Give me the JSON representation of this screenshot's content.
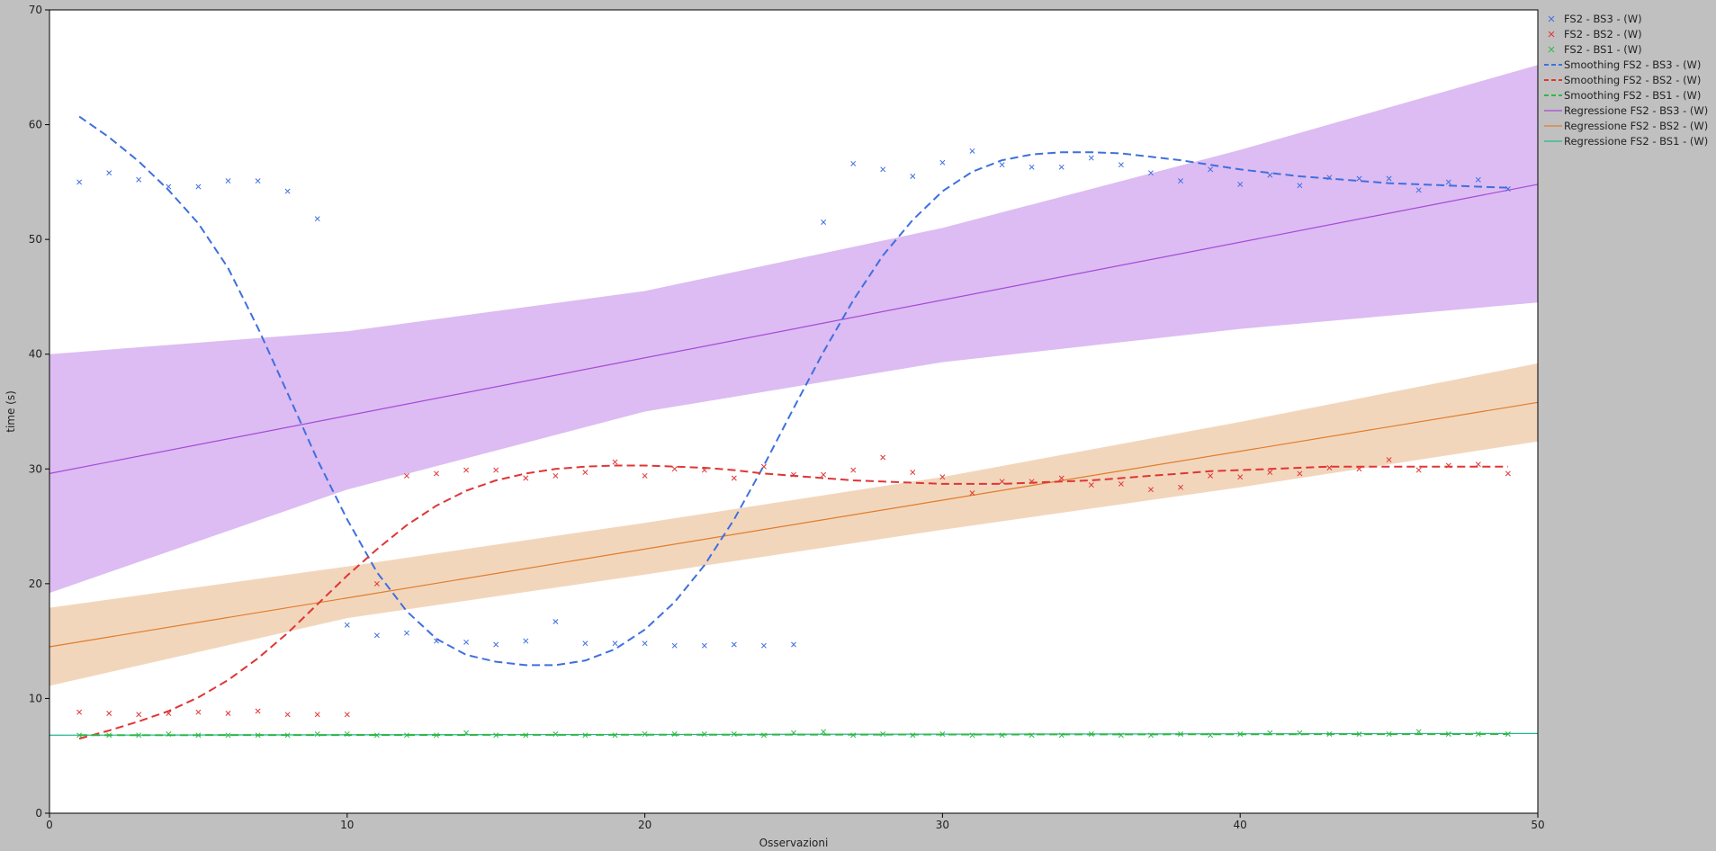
{
  "chart_data": {
    "type": "scatter",
    "xlabel": "Osservazioni",
    "ylabel": "time (s)",
    "xlim": [
      0,
      50
    ],
    "ylim": [
      0,
      70
    ],
    "xticks": [
      0,
      10,
      20,
      30,
      40,
      50
    ],
    "yticks": [
      0,
      10,
      20,
      30,
      40,
      50,
      60,
      70
    ],
    "grid": false,
    "legend_position": "right",
    "colors": {
      "plot_background": "#ffffff",
      "frame_background": "#c0c0c0",
      "bs3": "#3f6fe0",
      "bs2": "#e03535",
      "bs1": "#2eb84a",
      "reg_bs3": "#a64ad8",
      "reg_bs2": "#e07c2a",
      "reg_bs1": "#20b890",
      "band_bs3": "#dcbcf2",
      "band_bs2": "#f2d6bc"
    },
    "legend": [
      {
        "label": "FS2 - BS3 - (W)",
        "kind": "marker",
        "color_key": "bs3"
      },
      {
        "label": "FS2 - BS2 - (W)",
        "kind": "marker",
        "color_key": "bs2"
      },
      {
        "label": "FS2 - BS1 - (W)",
        "kind": "marker",
        "color_key": "bs1"
      },
      {
        "label": "Smoothing FS2 - BS3 - (W)",
        "kind": "dash",
        "color_key": "bs3"
      },
      {
        "label": "Smoothing FS2 - BS2 - (W)",
        "kind": "dash",
        "color_key": "bs2"
      },
      {
        "label": "Smoothing FS2 - BS1 - (W)",
        "kind": "dash",
        "color_key": "bs1"
      },
      {
        "label": "Regressione FS2 - BS3 - (W)",
        "kind": "line",
        "color_key": "reg_bs3"
      },
      {
        "label": "Regressione FS2 - BS2 - (W)",
        "kind": "line",
        "color_key": "reg_bs2"
      },
      {
        "label": "Regressione FS2 - BS1 - (W)",
        "kind": "line",
        "color_key": "reg_bs1"
      }
    ],
    "scatter_series": [
      {
        "name": "FS2 - BS3 - (W)",
        "color_key": "bs3",
        "x": [
          1,
          2,
          3,
          4,
          5,
          6,
          7,
          8,
          9,
          10,
          11,
          12,
          13,
          14,
          15,
          16,
          17,
          18,
          19,
          20,
          21,
          22,
          23,
          24,
          25,
          26,
          27,
          28,
          29,
          30,
          31,
          32,
          33,
          34,
          35,
          36,
          37,
          38,
          39,
          40,
          41,
          42,
          43,
          44,
          45,
          46,
          47,
          48,
          49
        ],
        "y": [
          55.0,
          55.8,
          55.2,
          54.6,
          54.6,
          55.1,
          55.1,
          54.2,
          51.8,
          16.4,
          15.5,
          15.7,
          15.0,
          14.9,
          14.7,
          15.0,
          16.7,
          14.8,
          14.8,
          14.8,
          14.6,
          14.6,
          14.7,
          14.6,
          14.7,
          51.5,
          56.6,
          56.1,
          55.5,
          56.7,
          57.7,
          56.5,
          56.3,
          56.3,
          57.1,
          56.5,
          55.8,
          55.1,
          56.1,
          54.8,
          55.6,
          54.7,
          55.4,
          55.3,
          55.3,
          54.3,
          55.0,
          55.2,
          54.4
        ]
      },
      {
        "name": "FS2 - BS2 - (W)",
        "color_key": "bs2",
        "x": [
          1,
          2,
          3,
          4,
          5,
          6,
          7,
          8,
          9,
          10,
          11,
          12,
          13,
          14,
          15,
          16,
          17,
          18,
          19,
          20,
          21,
          22,
          23,
          24,
          25,
          26,
          27,
          28,
          29,
          30,
          31,
          32,
          33,
          34,
          35,
          36,
          37,
          38,
          39,
          40,
          41,
          42,
          43,
          44,
          45,
          46,
          47,
          48,
          49
        ],
        "y": [
          8.8,
          8.7,
          8.6,
          8.7,
          8.8,
          8.7,
          8.9,
          8.6,
          8.6,
          8.6,
          20.0,
          29.4,
          29.6,
          29.9,
          29.9,
          29.2,
          29.4,
          29.7,
          30.6,
          29.4,
          30.0,
          29.9,
          29.2,
          30.2,
          29.5,
          29.5,
          29.9,
          31.0,
          29.7,
          29.3,
          27.9,
          28.9,
          28.9,
          29.2,
          28.6,
          28.7,
          28.2,
          28.4,
          29.4,
          29.3,
          29.7,
          29.6,
          30.1,
          30.0,
          30.8,
          29.9,
          30.3,
          30.4,
          29.6
        ]
      },
      {
        "name": "FS2 - BS1 - (W)",
        "color_key": "bs1",
        "x": [
          1,
          2,
          3,
          4,
          5,
          6,
          7,
          8,
          9,
          10,
          11,
          12,
          13,
          14,
          15,
          16,
          17,
          18,
          19,
          20,
          21,
          22,
          23,
          24,
          25,
          26,
          27,
          28,
          29,
          30,
          31,
          32,
          33,
          34,
          35,
          36,
          37,
          38,
          39,
          40,
          41,
          42,
          43,
          44,
          45,
          46,
          47,
          48,
          49
        ],
        "y": [
          6.8,
          6.8,
          6.8,
          6.9,
          6.8,
          6.8,
          6.8,
          6.8,
          6.9,
          6.9,
          6.8,
          6.8,
          6.8,
          7.0,
          6.8,
          6.8,
          6.9,
          6.8,
          6.8,
          6.9,
          6.9,
          6.9,
          6.9,
          6.8,
          7.0,
          7.1,
          6.8,
          6.9,
          6.8,
          6.9,
          6.8,
          6.8,
          6.8,
          6.8,
          6.9,
          6.8,
          6.8,
          6.9,
          6.8,
          6.9,
          7.0,
          7.0,
          6.9,
          6.9,
          6.9,
          7.1,
          6.9,
          6.9,
          6.9
        ]
      }
    ],
    "smoothing_series": [
      {
        "name": "Smoothing FS2 - BS3 - (W)",
        "color_key": "bs3",
        "x": [
          1,
          2,
          3,
          4,
          5,
          6,
          7,
          8,
          9,
          10,
          11,
          12,
          13,
          14,
          15,
          16,
          17,
          18,
          19,
          20,
          21,
          22,
          23,
          24,
          25,
          26,
          27,
          28,
          29,
          30,
          31,
          32,
          33,
          34,
          35,
          36,
          37,
          38,
          39,
          40,
          41,
          42,
          43,
          44,
          45,
          46,
          47,
          48,
          49
        ],
        "y": [
          60.7,
          58.9,
          56.8,
          54.3,
          51.4,
          47.5,
          42.3,
          36.6,
          30.8,
          25.6,
          21.0,
          17.6,
          15.2,
          13.8,
          13.2,
          12.9,
          12.9,
          13.3,
          14.3,
          16.0,
          18.4,
          21.6,
          25.6,
          30.3,
          35.3,
          40.2,
          44.7,
          48.6,
          51.7,
          54.2,
          55.9,
          56.9,
          57.4,
          57.6,
          57.6,
          57.5,
          57.2,
          56.9,
          56.5,
          56.1,
          55.8,
          55.5,
          55.3,
          55.1,
          54.9,
          54.8,
          54.7,
          54.6,
          54.5
        ]
      },
      {
        "name": "Smoothing FS2 - BS2 - (W)",
        "color_key": "bs2",
        "x": [
          1,
          2,
          3,
          4,
          5,
          6,
          7,
          8,
          9,
          10,
          11,
          12,
          13,
          14,
          15,
          16,
          17,
          18,
          19,
          20,
          21,
          22,
          23,
          24,
          25,
          26,
          27,
          28,
          29,
          30,
          31,
          32,
          33,
          34,
          35,
          36,
          37,
          38,
          39,
          40,
          41,
          42,
          43,
          44,
          45,
          46,
          47,
          48,
          49
        ],
        "y": [
          6.5,
          7.2,
          8.0,
          8.9,
          10.1,
          11.6,
          13.5,
          15.7,
          18.2,
          20.7,
          23.0,
          25.1,
          26.8,
          28.1,
          29.0,
          29.6,
          30.0,
          30.2,
          30.3,
          30.3,
          30.2,
          30.1,
          29.9,
          29.6,
          29.4,
          29.2,
          29.0,
          28.9,
          28.8,
          28.7,
          28.7,
          28.7,
          28.8,
          28.9,
          29.0,
          29.2,
          29.4,
          29.6,
          29.8,
          29.9,
          30.0,
          30.1,
          30.2,
          30.2,
          30.2,
          30.2,
          30.2,
          30.2,
          30.2
        ]
      },
      {
        "name": "Smoothing FS2 - BS1 - (W)",
        "color_key": "bs1",
        "x": [
          1,
          49
        ],
        "y": [
          6.8,
          6.9
        ]
      }
    ],
    "regression_series": [
      {
        "name": "Regressione FS2 - BS3 - (W)",
        "color_key": "reg_bs3",
        "x": [
          0,
          50
        ],
        "y": [
          29.6,
          54.8
        ]
      },
      {
        "name": "Regressione FS2 - BS2 - (W)",
        "color_key": "reg_bs2",
        "x": [
          0,
          50
        ],
        "y": [
          14.5,
          35.8
        ]
      },
      {
        "name": "Regressione FS2 - BS1 - (W)",
        "color_key": "reg_bs1",
        "x": [
          0,
          50
        ],
        "y": [
          6.8,
          6.95
        ]
      }
    ],
    "confidence_bands": [
      {
        "color_key": "band_bs3",
        "x": [
          0,
          10,
          20,
          30,
          40,
          50
        ],
        "upper": [
          40.0,
          42.0,
          45.5,
          51.0,
          57.8,
          65.2
        ],
        "lower": [
          19.2,
          28.2,
          35.0,
          39.3,
          42.2,
          44.5
        ]
      },
      {
        "color_key": "band_bs2",
        "x": [
          0,
          10,
          20,
          30,
          40,
          50
        ],
        "upper": [
          17.9,
          21.5,
          25.3,
          29.3,
          34.1,
          39.2
        ],
        "lower": [
          11.1,
          17.0,
          20.8,
          24.7,
          28.4,
          32.4
        ]
      }
    ]
  }
}
